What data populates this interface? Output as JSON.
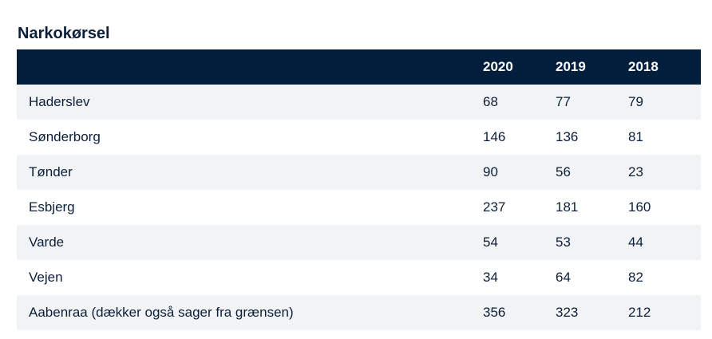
{
  "title": "Narkokørsel",
  "table": {
    "header": [
      "",
      "2020",
      "2019",
      "2018"
    ],
    "rows": [
      [
        "Haderslev",
        "68",
        "77",
        "79"
      ],
      [
        "Sønderborg",
        "146",
        "136",
        "81"
      ],
      [
        "Tønder",
        "90",
        "56",
        "23"
      ],
      [
        "Esbjerg",
        "237",
        "181",
        "160"
      ],
      [
        "Varde",
        "54",
        "53",
        "44"
      ],
      [
        "Vejen",
        "34",
        "64",
        "82"
      ],
      [
        "Aabenraa (dækker også sager fra grænsen)",
        "356",
        "323",
        "212"
      ]
    ]
  }
}
